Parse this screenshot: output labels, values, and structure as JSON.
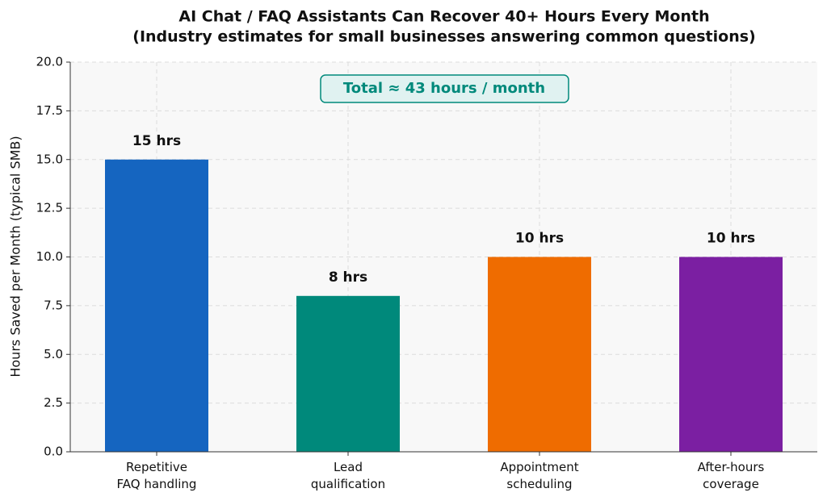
{
  "chart_data": {
    "type": "bar",
    "title": "AI Chat / FAQ Assistants Can Recover 40+ Hours Every Month",
    "subtitle": "(Industry estimates for small businesses answering common questions)",
    "y_label": "Hours Saved per Month (typical SMB)",
    "annotation": "Total ≈ 43 hours / month",
    "categories": [
      "Repetitive\nFAQ handling",
      "Lead\nqualification",
      "Appointment\nscheduling",
      "After-hours\ncoverage"
    ],
    "values": [
      15,
      8,
      10,
      10
    ],
    "value_labels": [
      "15 hrs",
      "8 hrs",
      "10 hrs",
      "10 hrs"
    ],
    "colors": [
      "#1565c0",
      "#00897b",
      "#ef6c00",
      "#7b1fa2"
    ],
    "ylim": [
      0,
      20
    ],
    "yticks": [
      {
        "value": 0,
        "label": "0.0"
      },
      {
        "value": 2.5,
        "label": "2.5"
      },
      {
        "value": 5,
        "label": "5.0"
      },
      {
        "value": 7.5,
        "label": "7.5"
      },
      {
        "value": 10,
        "label": "10.0"
      },
      {
        "value": 12.5,
        "label": "12.5"
      },
      {
        "value": 15,
        "label": "15.0"
      },
      {
        "value": 17.5,
        "label": "17.5"
      },
      {
        "value": 20,
        "label": "20.0"
      }
    ],
    "grid": true
  }
}
